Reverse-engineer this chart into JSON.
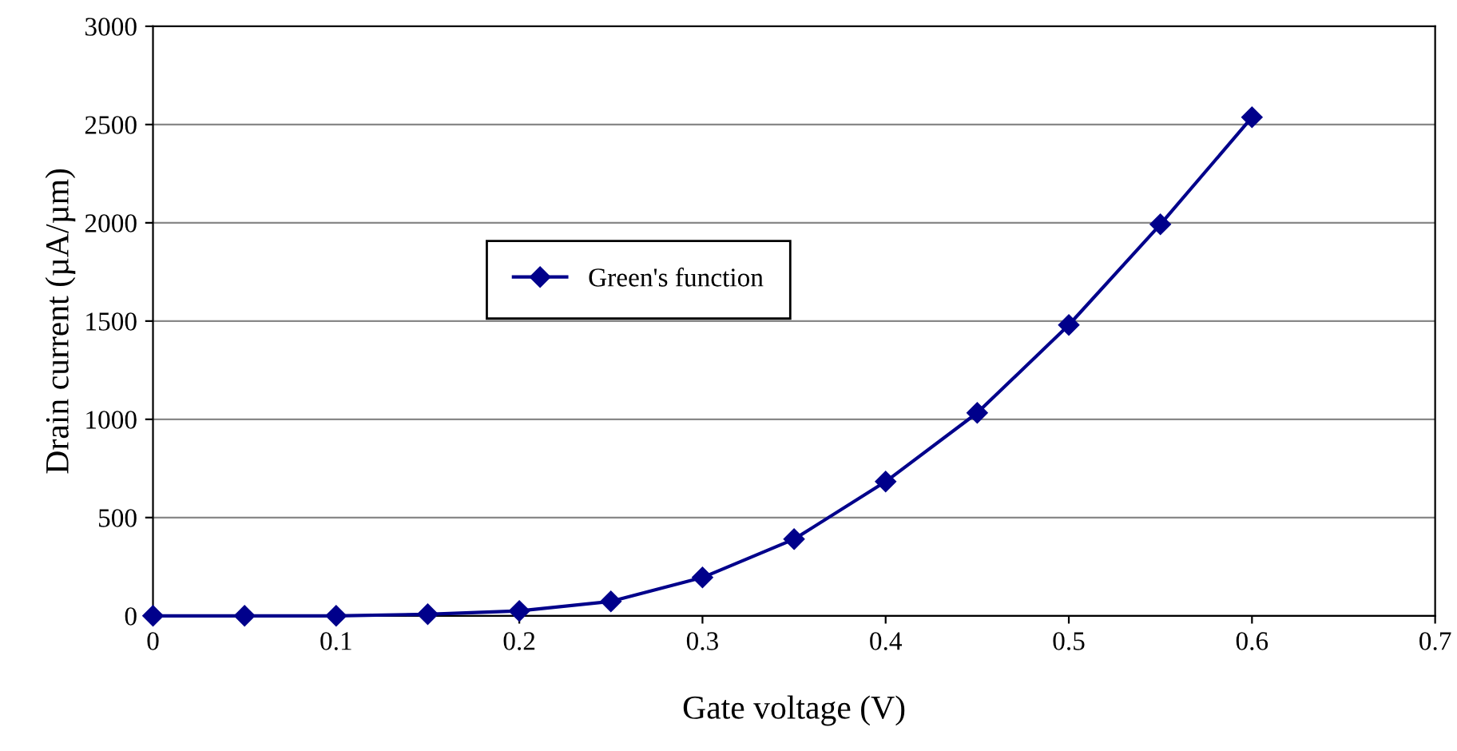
{
  "chart_data": {
    "type": "line",
    "xlabel": "Gate voltage (V)",
    "ylabel": "Drain current (µA/µm)",
    "xlim": [
      0,
      0.7
    ],
    "xticks": [
      0,
      0.1,
      0.2,
      0.3,
      0.4,
      0.5,
      0.6,
      0.7
    ],
    "ylim": [
      0,
      3000
    ],
    "yticks": [
      0,
      500,
      1000,
      1500,
      2000,
      2500,
      3000
    ],
    "grid": "y",
    "legend": "center left",
    "marker": "diamond",
    "line_style": "solid",
    "series": [
      {
        "name": "Green's function",
        "color": "#00008b",
        "x": [
          0,
          0.05,
          0.1,
          0.15,
          0.2,
          0.25,
          0.3,
          0.35,
          0.4,
          0.45,
          0.5,
          0.55,
          0.6
        ],
        "values": [
          0,
          0,
          0,
          8,
          25,
          73,
          195,
          390,
          683,
          1033,
          1480,
          1992,
          2537
        ]
      }
    ]
  }
}
